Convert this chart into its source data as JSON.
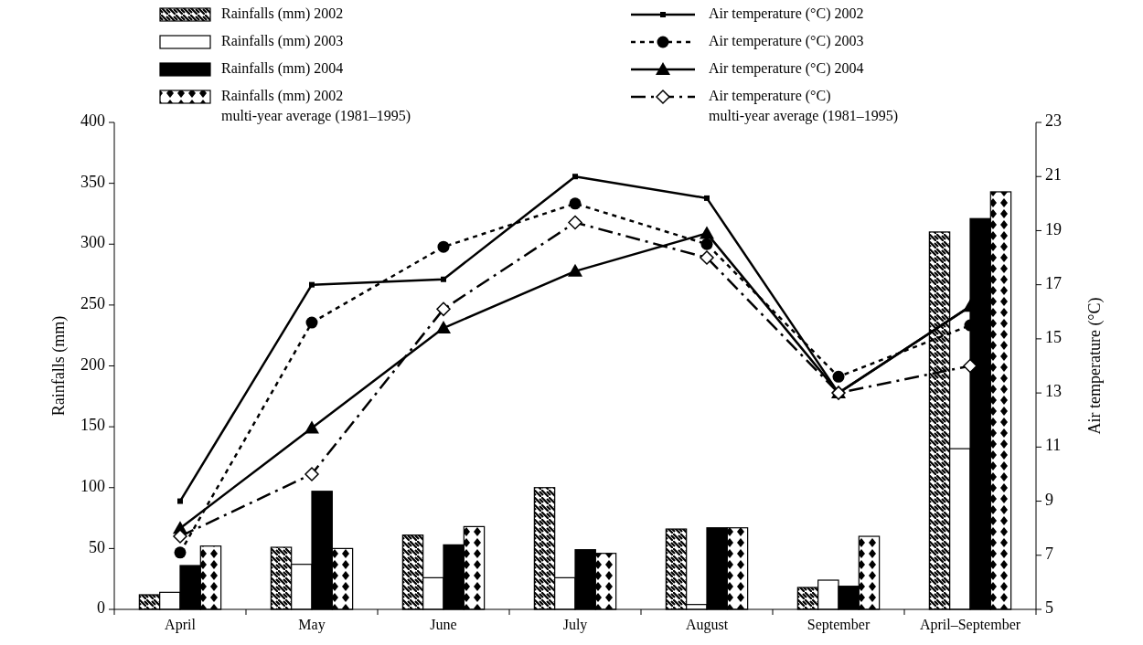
{
  "chart_data": {
    "type": "bar",
    "categories": [
      "April",
      "May",
      "June",
      "July",
      "August",
      "September",
      "April–September"
    ],
    "ylabel": "Rainfalls (mm)",
    "y2label": "Air temperature (°C)",
    "ylim": [
      0,
      400
    ],
    "yticks": [
      0,
      50,
      100,
      150,
      200,
      250,
      300,
      350,
      400
    ],
    "y2lim": [
      5,
      23
    ],
    "y2ticks": [
      5,
      7,
      9,
      11,
      13,
      15,
      17,
      19,
      21,
      23
    ],
    "grid": false,
    "legend": "top",
    "series": [
      {
        "name": "Rainfalls (mm) 2002",
        "color": "#000000",
        "values": [
          12,
          51,
          61,
          100,
          66,
          18,
          310
        ]
      },
      {
        "name": "Rainfalls (mm) 2003",
        "color": "#ffffff",
        "values": [
          14,
          37,
          26,
          26,
          4,
          24,
          132
        ]
      },
      {
        "name": "Rainfalls (mm) 2004",
        "color": "#000000",
        "values": [
          36,
          97,
          53,
          49,
          67,
          19,
          321
        ]
      },
      {
        "name": "Rainfalls (mm) 2002\nmulti-year average (1981–1995)",
        "color": "#000000",
        "values": [
          52,
          50,
          68,
          46,
          67,
          60,
          343
        ]
      },
      {
        "name": "Air temperature (°C) 2002",
        "type": "line",
        "axis": "y2",
        "color": "#000000",
        "marker": "square",
        "line_style": "solid",
        "values": [
          9.0,
          17.0,
          17.2,
          21.0,
          20.2,
          13.0,
          16.2
        ]
      },
      {
        "name": "Air temperature (°C) 2003",
        "type": "line",
        "axis": "y2",
        "color": "#000000",
        "marker": "circle",
        "line_style": "dotted",
        "values": [
          7.1,
          15.6,
          18.4,
          20.0,
          18.5,
          13.6,
          15.5
        ]
      },
      {
        "name": "Air temperature (°C) 2004",
        "type": "line",
        "axis": "y2",
        "color": "#000000",
        "marker": "triangle",
        "line_style": "solid",
        "values": [
          8.0,
          11.7,
          15.4,
          17.5,
          18.9,
          13.0,
          16.2
        ]
      },
      {
        "name": "Air temperature (°C)\nmulti-year average (1981–1995)",
        "type": "line",
        "axis": "y2",
        "color": "#000000",
        "marker": "diamond",
        "line_style": "dashed",
        "values": [
          7.7,
          10.0,
          16.1,
          19.3,
          18.0,
          13.0,
          14.0
        ]
      }
    ]
  }
}
